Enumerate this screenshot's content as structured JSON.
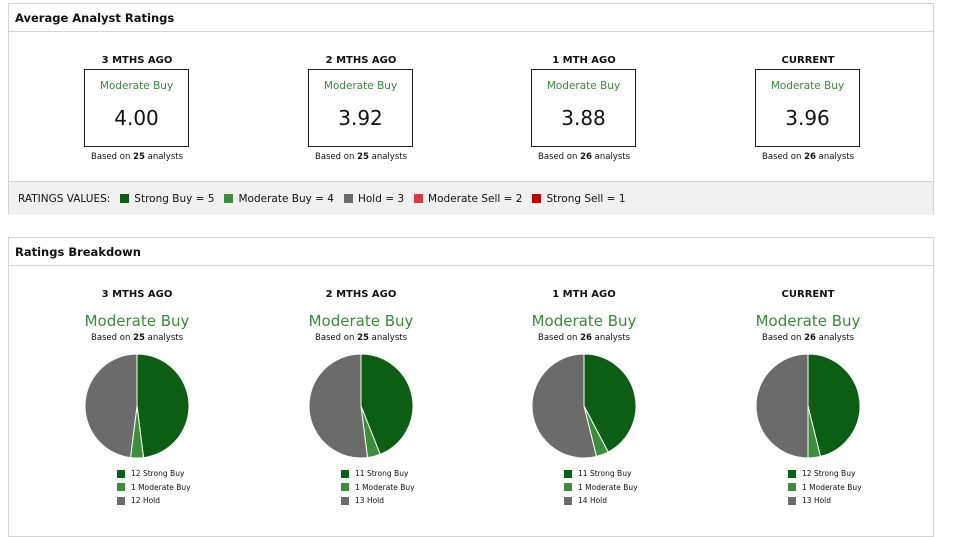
{
  "average_ratings": {
    "title": "Average Analyst Ratings",
    "based_on_prefix": "Based on",
    "based_on_suffix": "analysts",
    "periods": [
      {
        "label": "3 MTHS AGO",
        "rating": "Moderate Buy",
        "score": "4.00",
        "analysts": 25
      },
      {
        "label": "2 MTHS AGO",
        "rating": "Moderate Buy",
        "score": "3.92",
        "analysts": 25
      },
      {
        "label": "1 MTH AGO",
        "rating": "Moderate Buy",
        "score": "3.88",
        "analysts": 26
      },
      {
        "label": "CURRENT",
        "rating": "Moderate Buy",
        "score": "3.96",
        "analysts": 26
      }
    ],
    "legend_title": "RATINGS VALUES:",
    "legend": [
      {
        "label": "Strong Buy = 5",
        "color": "#0b5e13"
      },
      {
        "label": "Moderate Buy = 4",
        "color": "#3c8d3c"
      },
      {
        "label": "Hold = 3",
        "color": "#6b6b6b"
      },
      {
        "label": "Moderate Sell = 2",
        "color": "#d93a3f"
      },
      {
        "label": "Strong Sell = 1",
        "color": "#c00000"
      }
    ]
  },
  "ratings_breakdown": {
    "title": "Ratings Breakdown",
    "based_on_prefix": "Based on",
    "based_on_suffix": "analysts",
    "periods": [
      {
        "label": "3 MTHS AGO",
        "rating": "Moderate Buy",
        "analysts": 25,
        "slices": [
          {
            "count": 12,
            "name": "Strong Buy",
            "color": "#0b5e13"
          },
          {
            "count": 1,
            "name": "Moderate Buy",
            "color": "#3c8d3c"
          },
          {
            "count": 12,
            "name": "Hold",
            "color": "#6b6b6b"
          }
        ]
      },
      {
        "label": "2 MTHS AGO",
        "rating": "Moderate Buy",
        "analysts": 25,
        "slices": [
          {
            "count": 11,
            "name": "Strong Buy",
            "color": "#0b5e13"
          },
          {
            "count": 1,
            "name": "Moderate Buy",
            "color": "#3c8d3c"
          },
          {
            "count": 13,
            "name": "Hold",
            "color": "#6b6b6b"
          }
        ]
      },
      {
        "label": "1 MTH AGO",
        "rating": "Moderate Buy",
        "analysts": 26,
        "slices": [
          {
            "count": 11,
            "name": "Strong Buy",
            "color": "#0b5e13"
          },
          {
            "count": 1,
            "name": "Moderate Buy",
            "color": "#3c8d3c"
          },
          {
            "count": 14,
            "name": "Hold",
            "color": "#6b6b6b"
          }
        ]
      },
      {
        "label": "CURRENT",
        "rating": "Moderate Buy",
        "analysts": 26,
        "slices": [
          {
            "count": 12,
            "name": "Strong Buy",
            "color": "#0b5e13"
          },
          {
            "count": 1,
            "name": "Moderate Buy",
            "color": "#3c8d3c"
          },
          {
            "count": 13,
            "name": "Hold",
            "color": "#6b6b6b"
          }
        ]
      }
    ]
  }
}
